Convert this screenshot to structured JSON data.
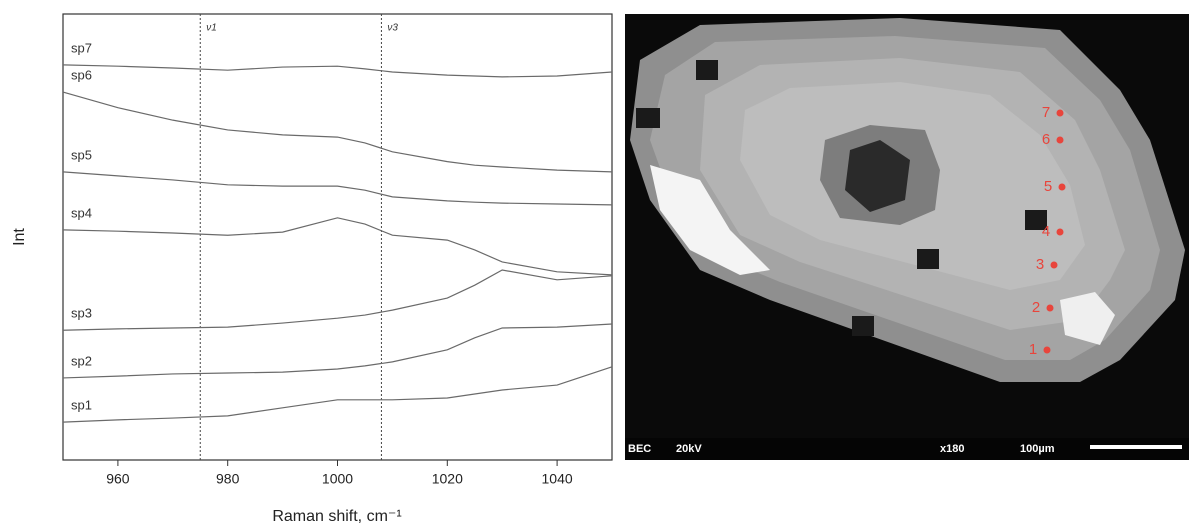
{
  "chart_data": {
    "type": "line",
    "xlabel": "Raman shift, cm⁻¹",
    "ylabel": "Int",
    "x": [
      950,
      960,
      970,
      980,
      990,
      1000,
      1005,
      1010,
      1020,
      1025,
      1030,
      1040,
      1050
    ],
    "xlim": [
      950,
      1050
    ],
    "xticks": [
      960,
      980,
      1000,
      1020,
      1040
    ],
    "ylim": [
      0,
      100
    ],
    "series": [
      {
        "name": "sp7",
        "color": "#6a6a6a",
        "values": [
          88.6,
          88.3,
          87.9,
          87.4,
          88.1,
          88.3,
          87.7,
          87.0,
          86.3,
          86.1,
          85.9,
          86.1,
          87.0
        ]
      },
      {
        "name": "sp6",
        "color": "#6a6a6a",
        "values": [
          82.5,
          79.0,
          76.2,
          74.0,
          72.9,
          72.4,
          71.1,
          69.1,
          66.9,
          66.1,
          65.7,
          65.0,
          64.6
        ]
      },
      {
        "name": "sp5",
        "color": "#6a6a6a",
        "values": [
          64.6,
          63.7,
          62.8,
          61.7,
          61.4,
          61.4,
          60.5,
          59.0,
          58.1,
          57.8,
          57.6,
          57.4,
          57.2
        ]
      },
      {
        "name": "sp4",
        "color": "#6a6a6a",
        "values": [
          51.6,
          51.3,
          50.9,
          50.4,
          51.1,
          54.3,
          52.9,
          50.4,
          49.3,
          47.1,
          44.4,
          42.2,
          41.5
        ]
      },
      {
        "name": "sp3",
        "color": "#6a6a6a",
        "values": [
          29.1,
          29.4,
          29.6,
          29.8,
          30.7,
          31.8,
          32.5,
          33.6,
          36.3,
          39.2,
          42.6,
          40.4,
          41.3
        ]
      },
      {
        "name": "sp2",
        "color": "#6a6a6a",
        "values": [
          18.4,
          18.8,
          19.3,
          19.5,
          19.7,
          20.4,
          21.1,
          22.0,
          24.7,
          27.4,
          29.6,
          29.8,
          30.5
        ]
      },
      {
        "name": "sp1",
        "color": "#6a6a6a",
        "values": [
          8.5,
          9.0,
          9.4,
          9.9,
          11.7,
          13.5,
          13.5,
          13.5,
          13.9,
          14.8,
          15.7,
          16.8,
          20.9
        ]
      }
    ],
    "markers": [
      {
        "x": 975,
        "label": "ν1"
      },
      {
        "x": 1008,
        "label": "ν3"
      }
    ]
  },
  "micrograph": {
    "mode": "BEC",
    "voltage": "20kV",
    "magnification": "x180",
    "scale": "100µm",
    "spots": [
      "1",
      "2",
      "3",
      "4",
      "5",
      "6",
      "7"
    ]
  }
}
